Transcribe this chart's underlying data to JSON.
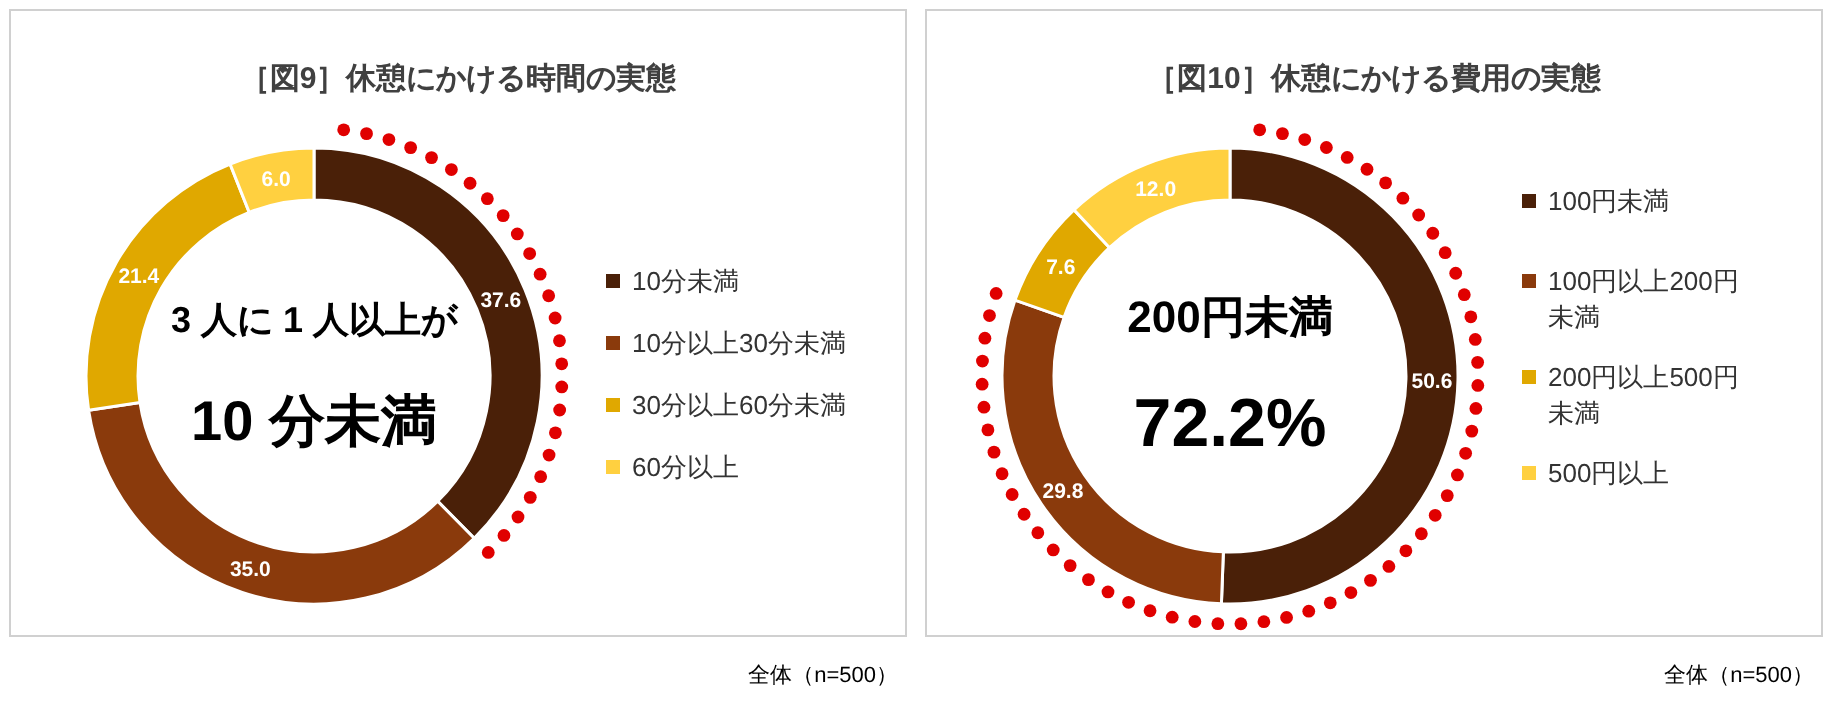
{
  "chart_data": [
    {
      "type": "donut",
      "title": "［図9］休憩にかける時間の実態",
      "categories": [
        "10分未満",
        "10分以上30分未満",
        "30分以上60分未満",
        "60分以上"
      ],
      "values": [
        37.6,
        35.0,
        21.4,
        6.0
      ],
      "value_labels": [
        "37.6",
        "35.0",
        "21.4",
        "6.0"
      ],
      "colors": [
        "#4a2008",
        "#8a3a0c",
        "#e0a800",
        "#ffd040"
      ],
      "legend": "right",
      "annotations": [
        "3 人に 1 人以上が",
        "10 分未満",
        "全体（n=500）"
      ]
    },
    {
      "type": "donut",
      "title": "［図10］休憩にかける費用の実態",
      "categories": [
        "100円未満",
        "100円以上200円未満",
        "200円以上500円未満",
        "500円以上"
      ],
      "values": [
        50.6,
        29.8,
        7.6,
        12.0
      ],
      "value_labels": [
        "50.6",
        "29.8",
        "7.6",
        "12.0"
      ],
      "colors": [
        "#4a2008",
        "#8a3a0c",
        "#e0a800",
        "#ffd040"
      ],
      "legend": "right",
      "annotations": [
        "200円未満",
        "72.2%",
        "全体（n=500）"
      ]
    }
  ]
}
